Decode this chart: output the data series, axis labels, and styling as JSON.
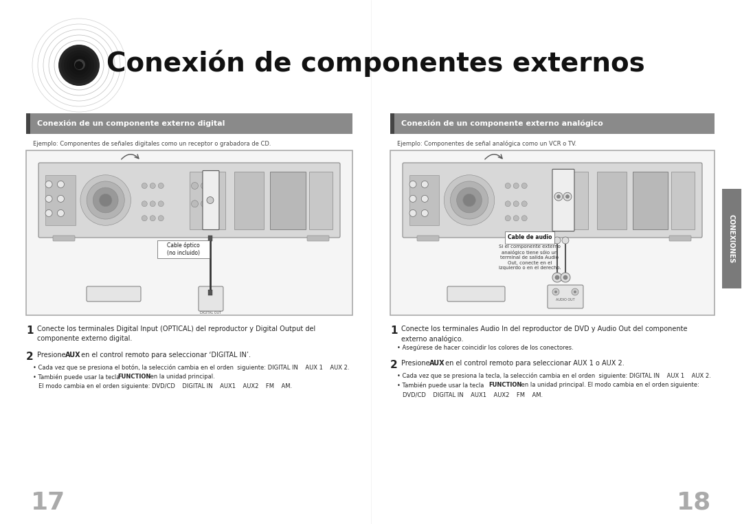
{
  "bg_color": "#ffffff",
  "title_text": "Conexión de componentes externos",
  "title_fontsize": 22,
  "title_color": "#111111",
  "left_header": "Conexión de un componente externo digital",
  "right_header": "Conexión de un componente externo analógico",
  "left_subtitle": "Ejemplo: Componentes de señales digitales como un receptor o grabadora de CD.",
  "right_subtitle": "Ejemplo: Componentes de señal analógica como un VCR o TV.",
  "cable_optico": "Cable óptico\n(no incluido)",
  "cable_audio": "Cable de audio",
  "callout_text": "Si el componente externo\nanalógico tiene sólo un\nterminal de salida Audio\nOut, conecte en el\nizquierdo o en el derecho.",
  "step1_left": "Conecte los terminales Digital Input (OPTICAL) del reproductor y Digital Output del\ncomponente externo digital.",
  "step2_left_pre": "Presione ",
  "step2_left_bold": "AUX",
  "step2_left_post": " en el control remoto para seleccionar ‘DIGITAL IN’.",
  "bullet1_left": "Cada vez que se presiona el botón, la selección cambia en el orden  siguiente: DIGITAL IN    AUX 1    AUX 2.",
  "bullet2_left_pre": "También puede usar la tecla ",
  "bullet2_left_bold": "FUNCTION",
  "bullet2_left_post": " en la unidad principal.",
  "bullet3_left": "El modo cambia en el orden siguiente: DVD/CD    DIGITAL IN    AUX1    AUX2    FM    AM.",
  "step1_right": "Conecte los terminales Audio In del reproductor de DVD y Audio Out del componente\nexterno analógico.",
  "step1b_right": "Asegúrese de hacer coincidir los colores de los conectores.",
  "step2_right_pre": "Presione ",
  "step2_right_bold": "AUX",
  "step2_right_post": " en el control remoto para seleccionar AUX 1 o AUX 2.",
  "bullet1_right": "Cada vez que se presiona la tecla, la selección cambia en el orden  siguiente: DIGITAL IN    AUX 1    AUX 2.",
  "bullet2_right_pre": "También puede usar la tecla ",
  "bullet2_right_bold": "FUNCTION",
  "bullet2_right_post": " en la unidad principal. El modo cambia en el orden siguiente:",
  "bullet3_right": "DVD/CD    DIGITAL IN    AUX1    AUX2    FM    AM.",
  "sidebar_text": "CONEXIONES",
  "page_left": "17",
  "page_right": "18",
  "header_gray": "#7a7a7a",
  "header_dark": "#444444",
  "text_color": "#222222",
  "page_num_color": "#aaaaaa"
}
